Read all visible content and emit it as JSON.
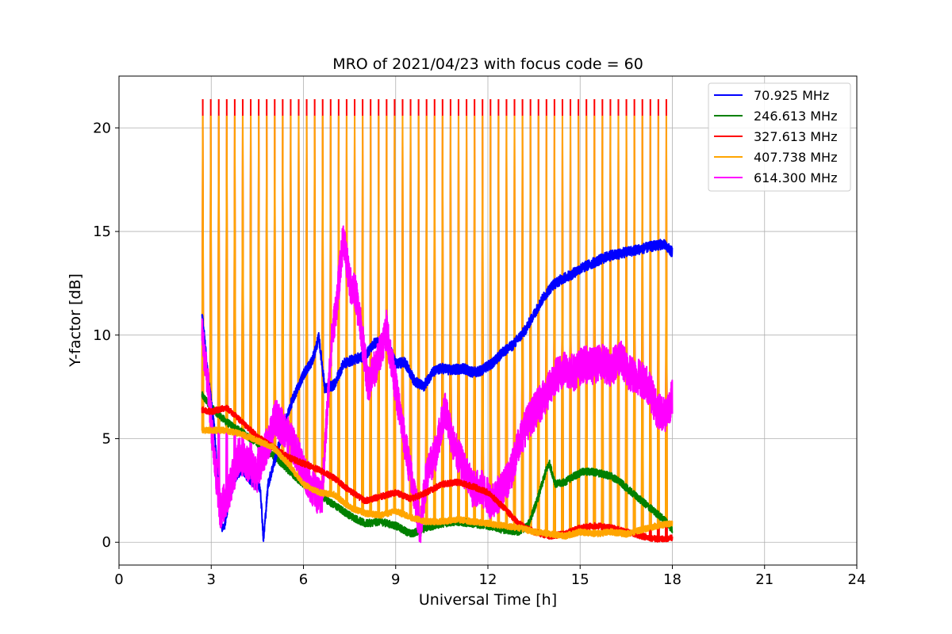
{
  "chart_data": {
    "type": "line",
    "title": "MRO of 2021/04/23 with focus code = 60",
    "xlabel": "Universal Time [h]",
    "ylabel": "Y-factor [dB]",
    "xlim": [
      0,
      24
    ],
    "ylim": [
      -1.1,
      22.5
    ],
    "xticks": [
      0,
      3,
      6,
      9,
      12,
      15,
      18,
      21,
      24
    ],
    "yticks": [
      0,
      5,
      10,
      15,
      20
    ],
    "grid": true,
    "legend_position": "top-right",
    "calibration_pulses": {
      "start_h": 2.7,
      "end_h": 18.0,
      "period_h": 0.26,
      "peaks": {
        "327.613 MHz": 21.35,
        "407.738 MHz": 20.55,
        "614.300 MHz": 11.15
      }
    },
    "series": [
      {
        "name": "  70.925 MHz",
        "color": "#0000ff",
        "x": [
          2.7,
          2.9,
          3.1,
          3.3,
          3.4,
          3.6,
          3.8,
          4.0,
          4.3,
          4.6,
          4.7,
          4.85,
          5.0,
          5.3,
          5.6,
          6.0,
          6.3,
          6.5,
          6.7,
          7.0,
          7.3,
          7.6,
          8.0,
          8.3,
          8.7,
          9.0,
          9.3,
          9.6,
          9.9,
          10.2,
          10.5,
          10.8,
          11.2,
          11.5,
          11.8,
          12.2,
          12.5,
          12.8,
          13.2,
          13.5,
          13.8,
          14.1,
          14.4,
          14.7,
          15.0,
          15.3,
          15.6,
          15.9,
          16.2,
          16.5,
          16.8,
          17.1,
          17.4,
          17.7,
          18.0
        ],
        "y": [
          11.1,
          8.0,
          5.5,
          1.0,
          0.6,
          2.2,
          3.2,
          3.5,
          3.0,
          2.6,
          0.1,
          2.8,
          3.6,
          5.2,
          6.7,
          8.1,
          8.8,
          9.9,
          7.4,
          7.6,
          8.6,
          8.8,
          9.0,
          9.6,
          9.8,
          8.6,
          8.7,
          7.8,
          7.5,
          8.2,
          8.4,
          8.3,
          8.4,
          8.2,
          8.3,
          8.7,
          9.2,
          9.5,
          10.2,
          11.0,
          11.8,
          12.4,
          12.7,
          12.9,
          13.2,
          13.4,
          13.6,
          13.8,
          13.9,
          14.0,
          14.1,
          14.2,
          14.3,
          14.4,
          14.0
        ]
      },
      {
        "name": "246.613 MHz",
        "color": "#008000",
        "x": [
          2.7,
          3.0,
          3.5,
          4.0,
          4.5,
          5.0,
          5.5,
          6.0,
          6.5,
          7.0,
          7.5,
          8.0,
          8.5,
          9.0,
          9.5,
          10.0,
          10.5,
          11.0,
          11.5,
          12.0,
          12.5,
          13.0,
          13.3,
          13.6,
          13.9,
          14.0,
          14.2,
          14.5,
          14.8,
          15.1,
          15.4,
          15.7,
          16.0,
          16.3,
          16.6,
          17.0,
          17.4,
          17.8,
          18.0
        ],
        "y": [
          7.1,
          6.5,
          5.8,
          5.3,
          4.8,
          4.2,
          3.5,
          2.8,
          2.3,
          1.8,
          1.3,
          0.9,
          1.0,
          0.8,
          0.4,
          0.7,
          0.9,
          1.0,
          0.9,
          0.8,
          0.6,
          0.5,
          0.8,
          2.0,
          3.5,
          3.8,
          2.8,
          2.9,
          3.2,
          3.4,
          3.4,
          3.3,
          3.2,
          2.9,
          2.5,
          2.0,
          1.5,
          1.0,
          0.6
        ]
      },
      {
        "name": "327.613 MHz",
        "color": "#ff0000",
        "x": [
          2.7,
          3.0,
          3.5,
          4.0,
          4.5,
          5.0,
          5.5,
          6.0,
          6.5,
          7.0,
          7.5,
          8.0,
          8.5,
          9.0,
          9.5,
          10.0,
          10.5,
          11.0,
          11.5,
          12.0,
          12.5,
          13.0,
          13.5,
          14.0,
          14.5,
          15.0,
          15.5,
          16.0,
          16.5,
          17.0,
          17.5,
          18.0
        ],
        "y": [
          6.4,
          6.3,
          6.5,
          5.8,
          5.1,
          4.6,
          4.1,
          3.8,
          3.5,
          3.1,
          2.5,
          2.0,
          2.2,
          2.4,
          2.1,
          2.4,
          2.8,
          2.9,
          2.7,
          2.4,
          1.7,
          0.9,
          0.5,
          0.3,
          0.4,
          0.7,
          0.8,
          0.7,
          0.5,
          0.3,
          0.15,
          0.2
        ]
      },
      {
        "name": "407.738 MHz",
        "color": "#ffa500",
        "x": [
          2.7,
          3.0,
          3.5,
          4.0,
          4.5,
          5.0,
          5.5,
          6.0,
          6.5,
          7.0,
          7.5,
          8.0,
          8.5,
          9.0,
          9.5,
          10.0,
          10.5,
          11.0,
          11.5,
          12.0,
          12.5,
          13.0,
          13.5,
          14.0,
          14.5,
          15.0,
          15.5,
          16.0,
          16.5,
          17.0,
          17.5,
          18.0
        ],
        "y": [
          5.4,
          5.4,
          5.4,
          5.2,
          4.9,
          4.6,
          3.8,
          2.8,
          2.4,
          2.3,
          1.7,
          1.4,
          1.3,
          1.5,
          1.2,
          1.0,
          1.0,
          1.1,
          1.0,
          0.9,
          0.8,
          0.7,
          0.5,
          0.4,
          0.3,
          0.5,
          0.4,
          0.5,
          0.4,
          0.6,
          0.8,
          0.9
        ]
      },
      {
        "name": "614.300 MHz",
        "color": "#ff00ff",
        "x": [
          2.7,
          2.9,
          3.1,
          3.3,
          3.6,
          3.9,
          4.2,
          4.5,
          4.8,
          5.1,
          5.4,
          5.7,
          6.0,
          6.3,
          6.6,
          6.9,
          7.1,
          7.3,
          7.5,
          7.7,
          7.9,
          8.1,
          8.4,
          8.7,
          9.0,
          9.3,
          9.6,
          9.8,
          10.0,
          10.3,
          10.6,
          10.9,
          11.2,
          11.5,
          11.8,
          12.1,
          12.4,
          12.7,
          13.0,
          13.3,
          13.6,
          13.9,
          14.2,
          14.5,
          14.8,
          15.1,
          15.4,
          15.7,
          16.0,
          16.3,
          16.6,
          16.9,
          17.2,
          17.5,
          17.8,
          18.0
        ],
        "y": [
          10.0,
          7.5,
          4.0,
          1.5,
          2.6,
          4.2,
          3.7,
          3.3,
          4.6,
          6.0,
          5.4,
          4.6,
          3.5,
          2.6,
          2.0,
          9.5,
          11.8,
          14.8,
          12.5,
          12.0,
          10.0,
          7.6,
          8.7,
          10.3,
          7.5,
          4.8,
          2.4,
          0.7,
          3.2,
          4.3,
          6.5,
          4.6,
          3.6,
          2.6,
          2.6,
          2.0,
          2.4,
          3.1,
          4.8,
          5.8,
          6.5,
          7.1,
          8.0,
          8.4,
          8.2,
          8.6,
          8.5,
          8.7,
          8.4,
          8.9,
          8.2,
          8.0,
          7.6,
          6.4,
          6.2,
          7.0
        ]
      }
    ]
  }
}
